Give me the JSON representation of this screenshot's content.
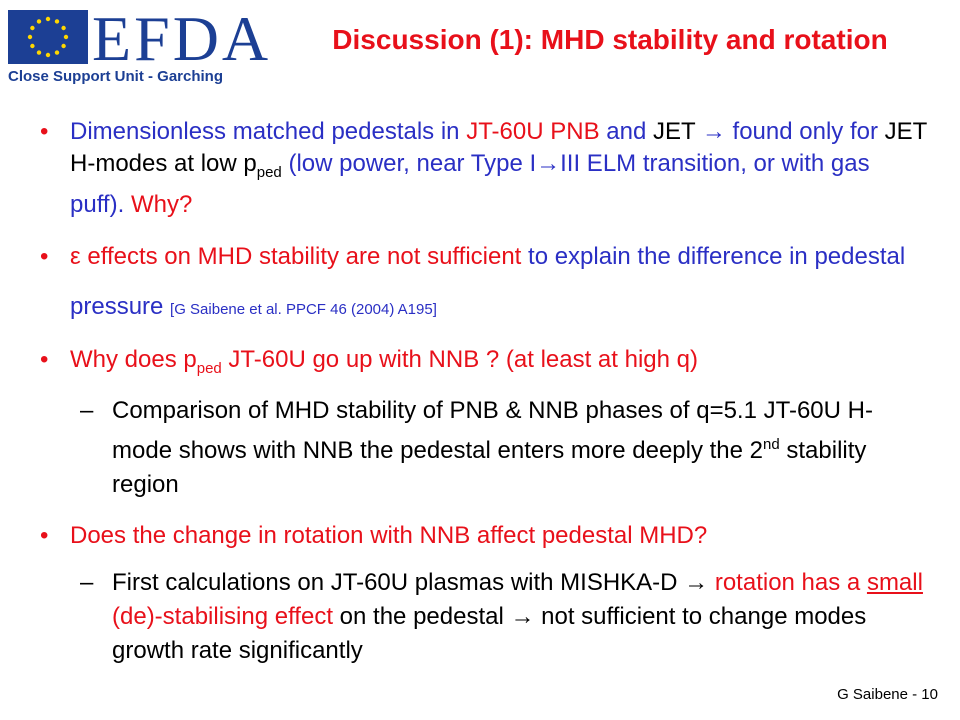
{
  "logo": {
    "text": "EFDA",
    "subtitle": "Close Support Unit - Garching"
  },
  "title": "Discussion (1):  MHD stability and rotation",
  "bullets": [
    {
      "runs": [
        "Dimensionless matched pedestals in ",
        "JT-60U PNB",
        " and ",
        "JET",
        " → found only for ",
        "JET H-modes at low p",
        "ped",
        " (low power, near Type I→III ELM transition, or with gas puff). ",
        "Why?"
      ]
    },
    {
      "runs": [
        "ε effects on MHD stability are not sufficient",
        " to explain the difference in pedestal pressure ",
        "[G Saibene et al. PPCF 46 (2004) A195]"
      ]
    },
    {
      "runs": [
        "Why does p",
        "ped",
        " JT-60U go up with NNB ? (at least at high q)"
      ],
      "sub": {
        "runs": [
          "Comparison of MHD stability of PNB & NNB phases of q=5.1 JT-60U H-mode shows with NNB the pedestal enters more deeply the 2",
          "nd",
          " stability region"
        ]
      }
    },
    {
      "runs": [
        "Does the change in rotation with NNB affect pedestal MHD?"
      ],
      "sub": {
        "runs": [
          "First calculations on JT-60U plasmas with MISHKA-D →",
          " rotation has a ",
          "small",
          " (de)-stabilising effect",
          " on the pedestal → not sufficient to change modes growth rate significantly"
        ]
      }
    }
  ],
  "footer": "G Saibene - 10"
}
